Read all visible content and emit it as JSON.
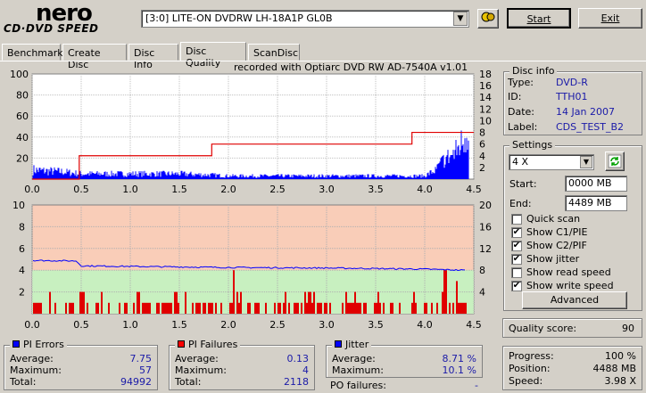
{
  "app": {
    "logo_top": "nero",
    "logo_bottom": "CD·DVD SPEED"
  },
  "toolbar": {
    "drive": "[3:0]  LITE-ON DVDRW LH-18A1P GL0B",
    "start_label": "Start",
    "exit_label": "Exit"
  },
  "tabs": [
    "Benchmark",
    "Create Disc",
    "Disc Info",
    "Disc Quality",
    "ScanDisc"
  ],
  "chart_caption": "recorded with Optiarc DVD RW AD-7540A  v1.01",
  "disc_info": {
    "title": "Disc info",
    "type_label": "Type:",
    "type": "DVD-R",
    "id_label": "ID:",
    "id": "TTH01",
    "date_label": "Date:",
    "date": "14 Jan 2007",
    "label_label": "Label:",
    "label": "CDS_TEST_B2"
  },
  "settings": {
    "title": "Settings",
    "speed": "4 X",
    "start_label": "Start:",
    "start": "0000 MB",
    "end_label": "End:",
    "end": "4489 MB",
    "checks": [
      {
        "label": "Quick scan",
        "checked": false
      },
      {
        "label": "Show C1/PIE",
        "checked": true
      },
      {
        "label": "Show C2/PIF",
        "checked": true
      },
      {
        "label": "Show jitter",
        "checked": true
      },
      {
        "label": "Show read speed",
        "checked": false
      },
      {
        "label": "Show write speed",
        "checked": true
      }
    ],
    "advanced_label": "Advanced"
  },
  "quality": {
    "label": "Quality score:",
    "value": "90"
  },
  "progress": {
    "progress_label": "Progress:",
    "progress": "100 %",
    "position_label": "Position:",
    "position": "4488 MB",
    "speed_label": "Speed:",
    "speed": "3.98 X"
  },
  "pi_errors": {
    "title": "PI Errors",
    "avg_label": "Average:",
    "avg": "7.75",
    "max_label": "Maximum:",
    "max": "57",
    "total_label": "Total:",
    "total": "94992",
    "color": "#0000ff"
  },
  "pi_failures": {
    "title": "PI Failures",
    "avg_label": "Average:",
    "avg": "0.13",
    "max_label": "Maximum:",
    "max": "4",
    "total_label": "Total:",
    "total": "2118",
    "color": "#ff0000"
  },
  "jitter": {
    "title": "Jitter",
    "avg_label": "Average:",
    "avg": "8.71 %",
    "max_label": "Maximum:",
    "max": "10.1 %",
    "po_label": "PO failures:",
    "po": "-",
    "color": "#0000ff"
  },
  "chart_data": [
    {
      "type": "bar",
      "name": "PI Errors",
      "x_ticks": [
        "0.0",
        "0.5",
        "1.0",
        "1.5",
        "2.0",
        "2.5",
        "3.0",
        "3.5",
        "4.0",
        "4.5"
      ],
      "y_ticks_left": [
        "20",
        "40",
        "60",
        "80",
        "100"
      ],
      "y_ticks_right": [
        "2",
        "4",
        "6",
        "8",
        "10",
        "12",
        "14",
        "16",
        "18"
      ],
      "xlim": [
        0,
        4.5
      ],
      "ylim_left": [
        0,
        100
      ],
      "ylim_right": [
        0,
        18
      ],
      "write_speed_steps": [
        [
          0.0,
          0
        ],
        [
          0.48,
          0
        ],
        [
          0.48,
          4
        ],
        [
          1.83,
          4
        ],
        [
          1.83,
          6
        ],
        [
          3.87,
          6
        ],
        [
          3.87,
          8
        ],
        [
          4.5,
          8
        ]
      ],
      "pie_profile": [
        [
          0.0,
          9
        ],
        [
          0.1,
          8
        ],
        [
          0.3,
          7
        ],
        [
          0.5,
          5
        ],
        [
          1.0,
          5
        ],
        [
          1.5,
          5
        ],
        [
          1.8,
          4
        ],
        [
          2.0,
          3
        ],
        [
          2.5,
          3
        ],
        [
          3.0,
          3
        ],
        [
          3.5,
          3
        ],
        [
          4.0,
          3
        ],
        [
          4.1,
          8
        ],
        [
          4.2,
          20
        ],
        [
          4.3,
          25
        ],
        [
          4.4,
          40
        ],
        [
          4.45,
          50
        ]
      ]
    },
    {
      "type": "bar",
      "name": "PI Failures",
      "x_ticks": [
        "0.0",
        "0.5",
        "1.0",
        "1.5",
        "2.0",
        "2.5",
        "3.0",
        "3.5",
        "4.0",
        "4.5"
      ],
      "y_ticks_left": [
        "2",
        "4",
        "6",
        "8",
        "10"
      ],
      "y_ticks_right": [
        "4",
        "8",
        "12",
        "16",
        "20"
      ],
      "xlim": [
        0,
        4.5
      ],
      "ylim_left": [
        0,
        10
      ],
      "ylim_right": [
        0,
        20
      ],
      "jitter_profile": [
        [
          0.0,
          9.8
        ],
        [
          0.45,
          9.7
        ],
        [
          0.5,
          8.8
        ],
        [
          1.0,
          8.7
        ],
        [
          2.0,
          8.5
        ],
        [
          3.0,
          8.4
        ],
        [
          4.0,
          8.2
        ],
        [
          4.4,
          8.0
        ]
      ],
      "pif_peaks": [
        [
          0.5,
          2
        ],
        [
          1.07,
          2
        ],
        [
          2.05,
          4
        ],
        [
          4.2,
          4
        ],
        [
          4.32,
          3
        ]
      ]
    }
  ]
}
